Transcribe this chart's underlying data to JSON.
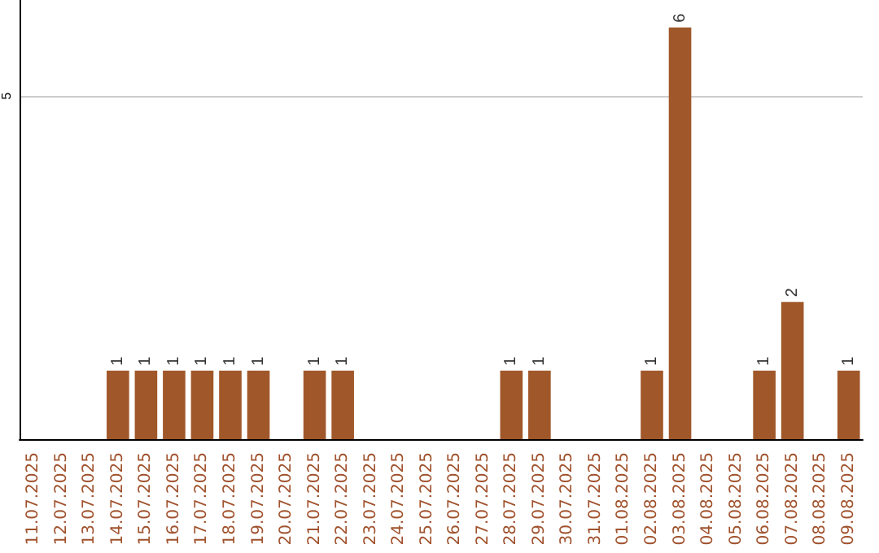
{
  "chart_data": {
    "type": "bar",
    "categories": [
      "11.07.2025",
      "12.07.2025",
      "13.07.2025",
      "14.07.2025",
      "15.07.2025",
      "16.07.2025",
      "17.07.2025",
      "18.07.2025",
      "19.07.2025",
      "20.07.2025",
      "21.07.2025",
      "22.07.2025",
      "23.07.2025",
      "24.07.2025",
      "25.07.2025",
      "26.07.2025",
      "27.07.2025",
      "28.07.2025",
      "29.07.2025",
      "30.07.2025",
      "31.07.2025",
      "01.08.2025",
      "02.08.2025",
      "03.08.2025",
      "04.08.2025",
      "05.08.2025",
      "06.08.2025",
      "07.08.2025",
      "08.08.2025",
      "09.08.2025"
    ],
    "values": [
      0,
      0,
      0,
      1,
      1,
      1,
      1,
      1,
      1,
      0,
      1,
      1,
      0,
      0,
      0,
      0,
      0,
      1,
      1,
      0,
      0,
      0,
      1,
      6,
      0,
      0,
      1,
      2,
      0,
      1
    ],
    "value_labels": [
      null,
      null,
      null,
      "1",
      "1",
      "1",
      "1",
      "1",
      "1",
      null,
      "1",
      "1",
      null,
      null,
      null,
      null,
      null,
      "1",
      "1",
      null,
      null,
      null,
      "1",
      "6",
      null,
      null,
      "1",
      "2",
      null,
      "1"
    ],
    "color": "#a0582a",
    "ylim": [
      0,
      6.4
    ],
    "yticks": [
      5
    ],
    "grid": "y"
  }
}
